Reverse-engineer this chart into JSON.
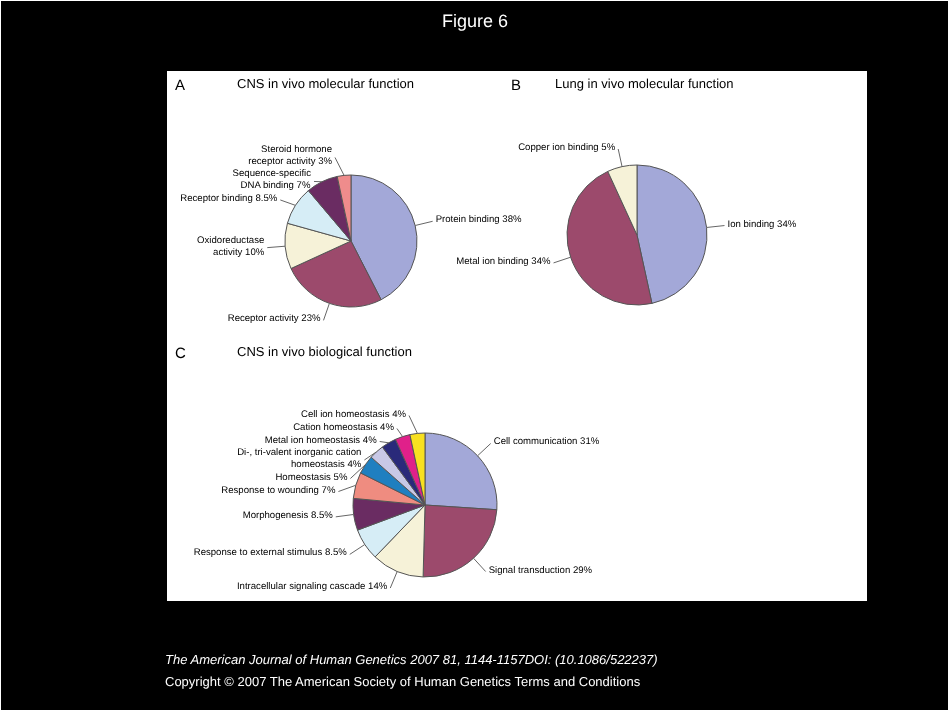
{
  "chart_data": [
    {
      "type": "pie",
      "title": "CNS in vivo molecular function",
      "annotations": [
        "A",
        "Figure 6"
      ],
      "categories": [
        "Protein binding",
        "Receptor activity",
        "Oxidoreductase activity",
        "Receptor binding",
        "Sequence-specific DNA binding",
        "Steroid hormone receptor activity"
      ],
      "values": [
        38,
        23,
        10,
        8.5,
        7,
        3
      ],
      "value_labels": [
        "38%",
        "23%",
        "10%",
        "8.5%",
        "7%",
        "3%"
      ],
      "colors": [
        "#a3a8d8",
        "#9c4a6c",
        "#f6f2d8",
        "#d6edf6",
        "#6a2c62",
        "#ef8c8c"
      ]
    },
    {
      "type": "pie",
      "title": "Lung in vivo molecular function",
      "annotations": [
        "B"
      ],
      "categories": [
        "Ion binding",
        "Metal ion binding",
        "Copper ion binding"
      ],
      "values": [
        34,
        34,
        5
      ],
      "value_labels": [
        "34%",
        "34%",
        "5%"
      ],
      "colors": [
        "#a3a8d8",
        "#9c4a6c",
        "#f6f2d8"
      ]
    },
    {
      "type": "pie",
      "title": "CNS in vivo biological function",
      "annotations": [
        "C",
        "The American Journal of Human Genetics 2007 81, 1144-1157DOI: (10.1086/522237)",
        "Copyright © 2007 The American Society of Human Genetics Terms and Conditions"
      ],
      "categories": [
        "Cell communication",
        "Signal transduction",
        "Intracellular signaling cascade",
        "Response to external stimulus",
        "Morphogenesis",
        "Response to wounding",
        "Homeostasis",
        "Di-, tri-valent inorganic cation homeostasis",
        "Metal ion homeostasis",
        "Cation homeostasis",
        "Cell ion homeostasis"
      ],
      "values": [
        31,
        29,
        14,
        8.5,
        8.5,
        7,
        5,
        4,
        4,
        4,
        4
      ],
      "value_labels": [
        "31%",
        "29%",
        "14%",
        "8.5%",
        "8.5%",
        "7%",
        "5%",
        "4%",
        "4%",
        "4%",
        "4%"
      ],
      "colors": [
        "#a3a8d8",
        "#9c4a6c",
        "#f6f2d8",
        "#d6edf6",
        "#6a2c62",
        "#ef8c80",
        "#1f7fc0",
        "#c8c8e6",
        "#2a2a7a",
        "#e0208a",
        "#f8e020"
      ]
    }
  ]
}
